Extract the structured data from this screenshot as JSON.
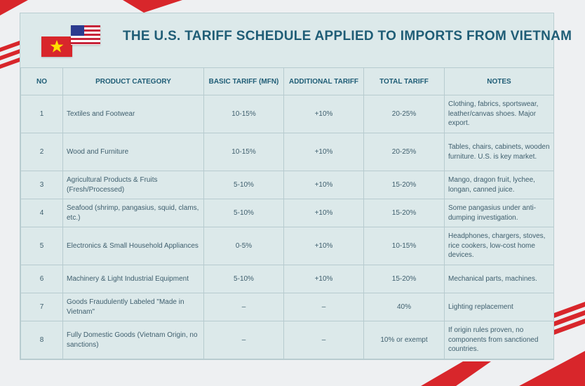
{
  "title": "THE U.S. TARIFF SCHEDULE APPLIED TO IMPORTS FROM VIETNAM",
  "colors": {
    "accent": "#1f5d76",
    "background": "#dce9ea",
    "flag_red": "#d8262b",
    "flag_blue": "#2b3b8f"
  },
  "icons": [
    "vietnam-flag-icon",
    "us-flag-icon"
  ],
  "table": {
    "headers": [
      "NO",
      "PRODUCT CATEGORY",
      "BASIC TARIFF (MFN)",
      "ADDITIONAL TARIFF",
      "TOTAL TARIFF",
      "NOTES"
    ],
    "rows": [
      [
        "1",
        "Textiles and Footwear",
        "10-15%",
        "+10%",
        "20-25%",
        "Clothing, fabrics, sportswear, leather/canvas shoes. Major export."
      ],
      [
        "2",
        "Wood and Furniture",
        "10-15%",
        "+10%",
        "20-25%",
        "Tables, chairs, cabinets, wooden furniture. U.S. is key market."
      ],
      [
        "3",
        "Agricultural Products & Fruits (Fresh/Processed)",
        "5-10%",
        "+10%",
        "15-20%",
        "Mango, dragon fruit, lychee, longan, canned juice."
      ],
      [
        "4",
        "Seafood (shrimp, pangasius, squid, clams, etc.)",
        "5-10%",
        "+10%",
        "15-20%",
        "Some pangasius under anti-dumping investigation."
      ],
      [
        "5",
        "Electronics & Small Household Appliances",
        "0-5%",
        "+10%",
        "10-15%",
        "Headphones, chargers, stoves, rice cookers, low-cost home devices."
      ],
      [
        "6",
        "Machinery & Light Industrial Equipment",
        "5-10%",
        "+10%",
        "15-20%",
        "Mechanical parts, machines."
      ],
      [
        "7",
        "Goods Fraudulently Labeled \"Made in Vietnam\"",
        "–",
        "–",
        "40%",
        "Lighting replacement"
      ],
      [
        "8",
        "Fully Domestic Goods (Vietnam Origin, no sanctions)",
        "–",
        "–",
        "10% or exempt",
        "If origin rules proven, no components from sanctioned countries."
      ]
    ]
  }
}
